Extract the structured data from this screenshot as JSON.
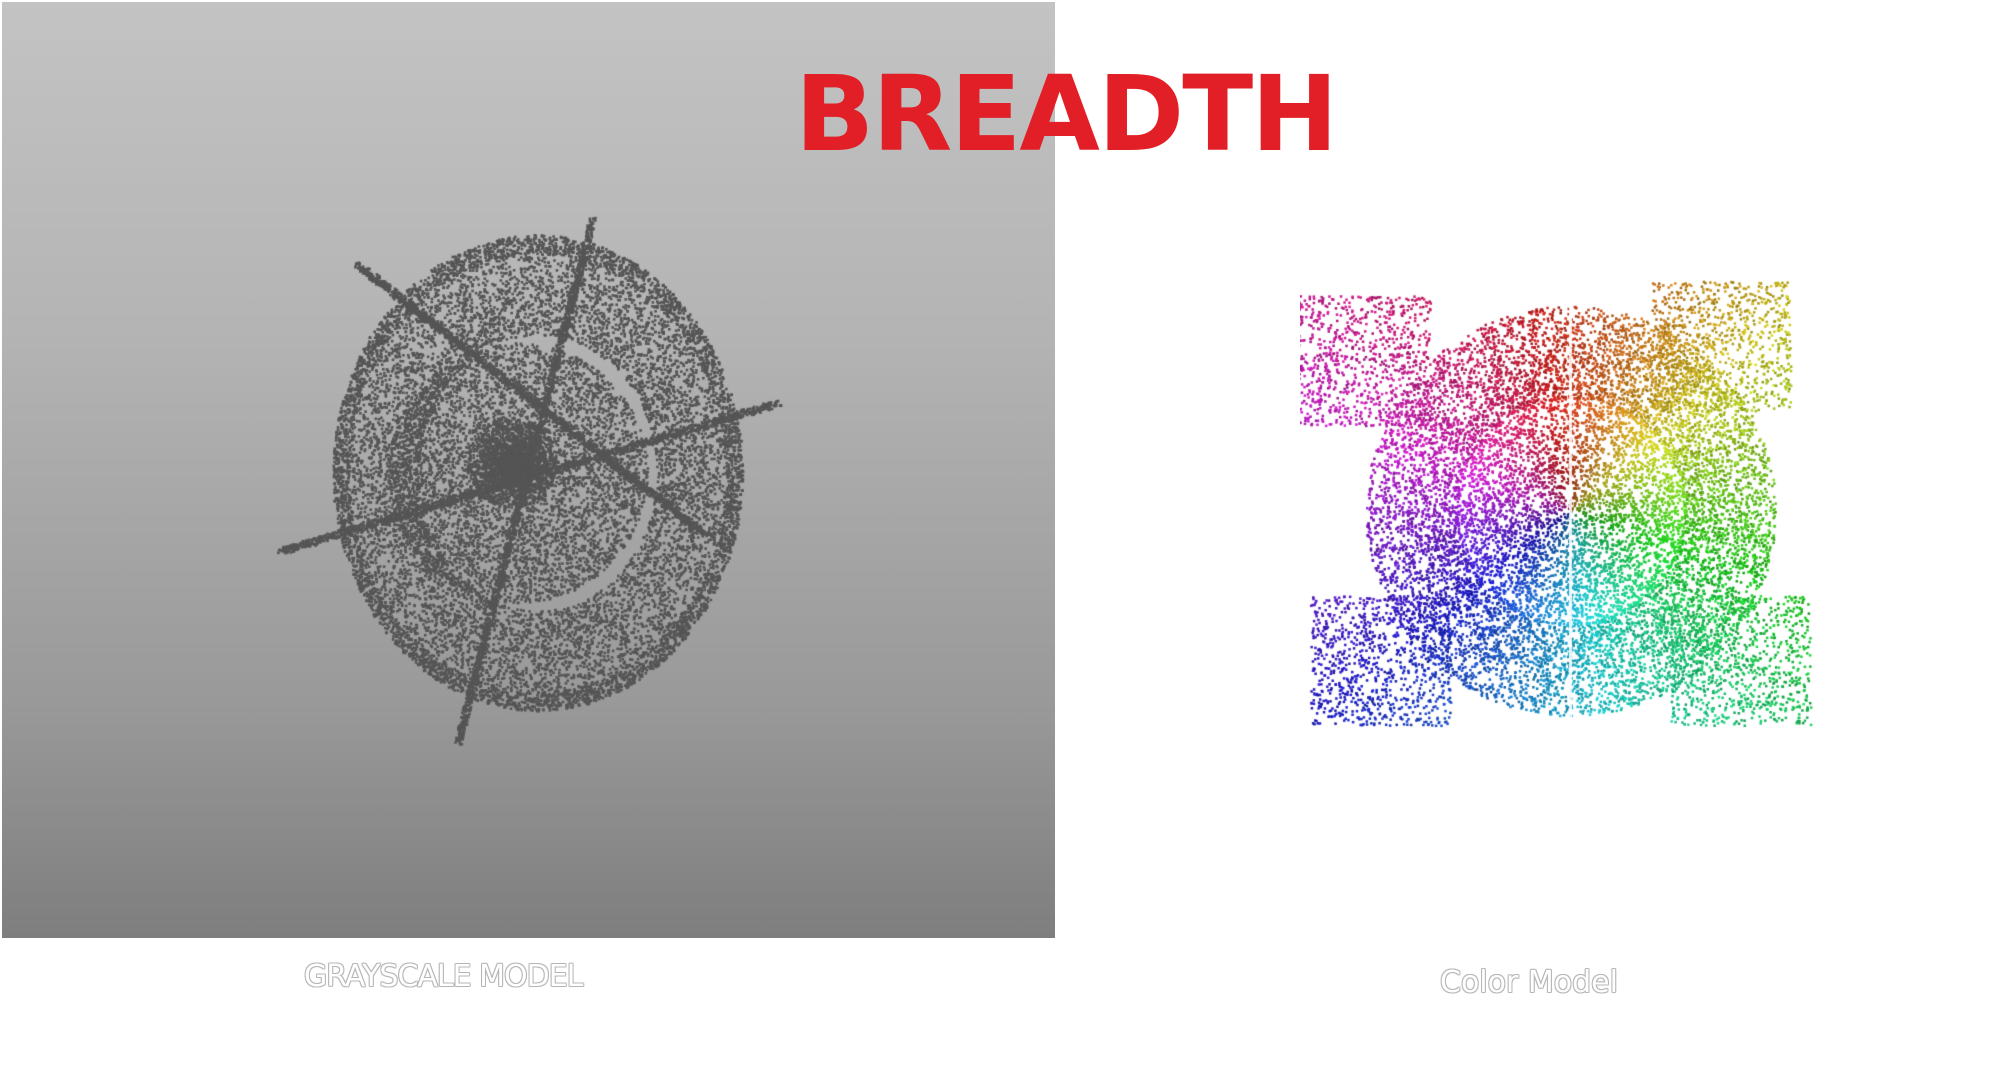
{
  "title": "BREADTH",
  "panels": {
    "grayscale": {
      "caption": "GRAYSCALE MODEL"
    },
    "color": {
      "caption": "Color Model"
    }
  },
  "colors": {
    "title": "#e21f26",
    "point_gray": "#555555",
    "caption_fill": "#ffffff"
  }
}
